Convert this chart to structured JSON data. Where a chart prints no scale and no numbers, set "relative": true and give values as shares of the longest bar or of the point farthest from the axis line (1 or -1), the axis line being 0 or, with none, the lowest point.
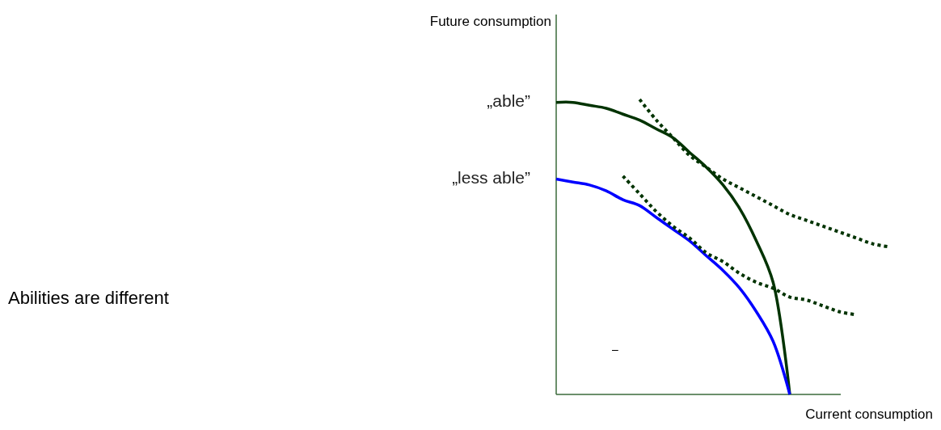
{
  "chart_data": {
    "type": "line",
    "title": "Abilities are different",
    "xlabel": "Current consumption",
    "relative": true,
    "annotations": [
      "Future consumption",
      "–"
    ],
    "categories": [
      null,
      null,
      null,
      null,
      null,
      null,
      null,
      null,
      null,
      null,
      null,
      null,
      null,
      null,
      null,
      null,
      null,
      null,
      null,
      null,
      null
    ],
    "series": [
      {
        "name": "„able”",
        "color": "#003300",
        "line_style": "solid",
        "values": [
          0.99,
          0.99,
          0.98,
          0.97,
          0.95,
          0.93,
          0.9,
          0.87,
          0.82,
          0.77,
          0.71,
          0.63,
          0.52,
          0.38,
          0,
          null,
          null,
          null,
          null,
          null,
          null
        ]
      },
      {
        "name": "„less able”",
        "color": "#0000ff",
        "line_style": "solid",
        "values": [
          0.73,
          0.72,
          0.71,
          0.69,
          0.66,
          0.64,
          0.6,
          0.56,
          0.52,
          0.47,
          0.42,
          0.36,
          0.28,
          0.18,
          0,
          null,
          null,
          null,
          null,
          null,
          null
        ]
      },
      {
        "color": "#003300",
        "line_style": "dotted",
        "values": [
          null,
          null,
          null,
          null,
          null,
          1.0,
          0.93,
          0.87,
          0.81,
          0.77,
          0.73,
          0.7,
          0.67,
          0.64,
          0.61,
          0.59,
          0.57,
          0.55,
          0.53,
          0.51,
          0.5
        ]
      },
      {
        "color": "#003300",
        "line_style": "dotted",
        "values": [
          null,
          null,
          null,
          null,
          0.74,
          0.68,
          0.62,
          0.57,
          0.53,
          0.48,
          0.45,
          0.41,
          0.38,
          0.36,
          0.33,
          0.32,
          0.3,
          0.28,
          0.27,
          null,
          null
        ]
      }
    ]
  }
}
